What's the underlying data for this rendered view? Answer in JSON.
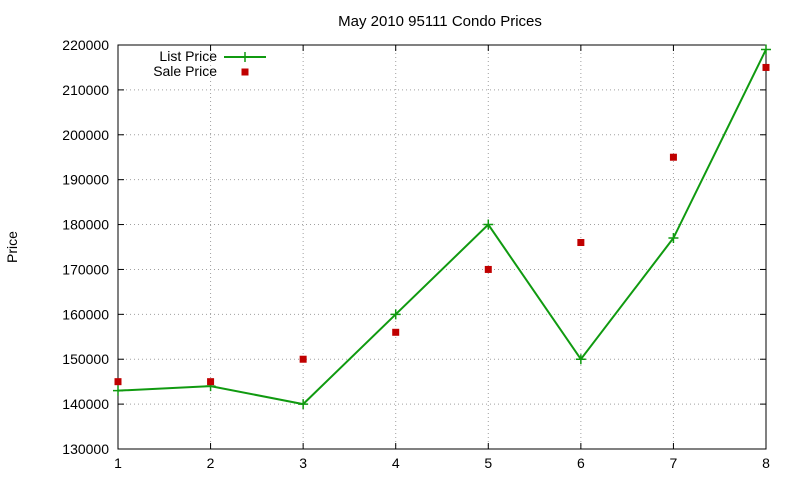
{
  "chart_data": {
    "type": "line",
    "title": "May 2010 95111 Condo Prices",
    "xlabel": "",
    "ylabel": "Price",
    "x": [
      1,
      2,
      3,
      4,
      5,
      6,
      7,
      8
    ],
    "xlim": [
      1,
      8
    ],
    "ylim": [
      130000,
      220000
    ],
    "yticks": [
      130000,
      140000,
      150000,
      160000,
      170000,
      180000,
      190000,
      200000,
      210000,
      220000
    ],
    "xticks": [
      1,
      2,
      3,
      4,
      5,
      6,
      7,
      8
    ],
    "grid": true,
    "legend_position": "top-left",
    "series": [
      {
        "name": "List Price",
        "style": "line-with-plus-markers",
        "color": "#109a10",
        "values": [
          143000,
          144000,
          140000,
          160000,
          180000,
          150000,
          177000,
          219000
        ]
      },
      {
        "name": "Sale Price",
        "style": "square-markers",
        "color": "#c00000",
        "values": [
          145000,
          145000,
          150000,
          156000,
          170000,
          176000,
          195000,
          215000
        ]
      }
    ]
  }
}
